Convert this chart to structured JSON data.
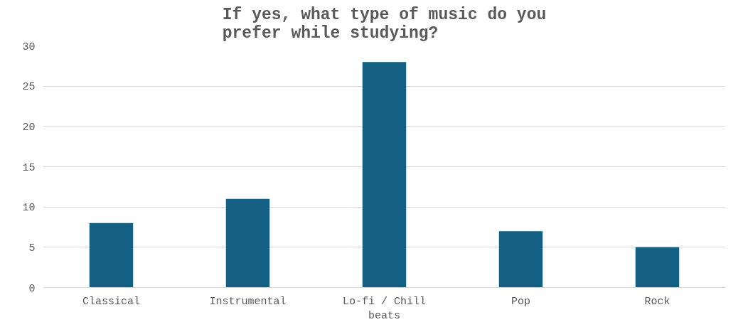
{
  "chart_data": {
    "type": "bar",
    "title": "If yes, what type of music do you prefer while studying?",
    "categories": [
      "Classical",
      "Instrumental",
      "Lo-fi / Chill beats",
      "Pop",
      "Rock"
    ],
    "values": [
      8,
      11,
      28,
      7,
      5
    ],
    "color": "#156082",
    "ylim": [
      0,
      30
    ],
    "yticks": [
      0,
      5,
      10,
      15,
      20,
      25,
      30
    ],
    "grid": "y"
  }
}
